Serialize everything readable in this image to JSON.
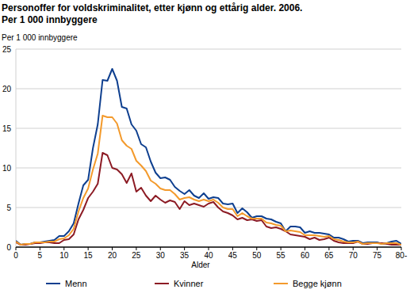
{
  "chart_data": {
    "type": "line",
    "title": "Personoffer for voldskriminalitet, etter kjønn og ettårig alder. 2006.",
    "subtitle": "Per 1 000 innbyggere",
    "y_label": "Per 1 000 innbyggere",
    "x_label": "Alder",
    "categories": [
      "0",
      null,
      null,
      null,
      null,
      "5",
      null,
      null,
      null,
      null,
      "10",
      null,
      null,
      null,
      null,
      "15",
      null,
      null,
      null,
      null,
      "20",
      null,
      null,
      null,
      null,
      "25",
      null,
      null,
      null,
      null,
      "30",
      null,
      null,
      null,
      null,
      "35",
      null,
      null,
      null,
      null,
      "40",
      null,
      null,
      null,
      null,
      "45",
      null,
      null,
      null,
      null,
      "50",
      null,
      null,
      null,
      null,
      "55",
      null,
      null,
      null,
      null,
      "60",
      null,
      null,
      null,
      null,
      "65",
      null,
      null,
      null,
      null,
      "70",
      null,
      null,
      null,
      null,
      "75",
      null,
      null,
      null,
      null,
      "80-"
    ],
    "series": [
      {
        "name": "Menn",
        "color": "#0e3f8f",
        "values": [
          0.8,
          0.3,
          0.4,
          0.4,
          0.6,
          0.6,
          0.7,
          0.8,
          0.9,
          1.4,
          1.4,
          2.0,
          3.0,
          5.5,
          7.8,
          8.5,
          12.5,
          15.5,
          21.1,
          21.0,
          22.5,
          21.0,
          17.7,
          17.5,
          15.5,
          14.7,
          13.0,
          12.6,
          10.8,
          9.4,
          8.7,
          8.8,
          8.5,
          7.6,
          7.1,
          6.7,
          7.2,
          6.5,
          6.2,
          6.8,
          6.1,
          6.3,
          6.2,
          5.5,
          5.4,
          5.5,
          4.3,
          4.9,
          4.4,
          3.7,
          3.9,
          3.9,
          3.6,
          3.5,
          3.2,
          3.0,
          2.0,
          2.6,
          2.6,
          2.5,
          1.8,
          2.0,
          1.8,
          1.8,
          1.7,
          1.6,
          1.2,
          1.2,
          1.0,
          0.7,
          0.8,
          0.8,
          0.5,
          0.6,
          0.6,
          0.6,
          0.4,
          0.5,
          0.7,
          0.8,
          0.4
        ]
      },
      {
        "name": "Kvinner",
        "color": "#8c1b24",
        "values": [
          0.6,
          0.3,
          0.3,
          0.4,
          0.5,
          0.5,
          0.6,
          0.6,
          0.5,
          0.5,
          0.9,
          1.0,
          1.6,
          3.5,
          4.7,
          6.2,
          7.0,
          8.0,
          11.9,
          11.6,
          10.0,
          9.8,
          9.2,
          8.1,
          9.3,
          7.0,
          7.5,
          6.5,
          5.8,
          6.5,
          6.0,
          5.6,
          5.9,
          5.7,
          4.8,
          5.8,
          5.3,
          5.5,
          5.3,
          5.1,
          5.5,
          5.7,
          5.0,
          4.5,
          4.3,
          4.0,
          3.5,
          3.7,
          3.4,
          3.5,
          3.3,
          3.4,
          2.6,
          2.4,
          2.5,
          2.3,
          2.0,
          1.6,
          1.5,
          1.4,
          1.3,
          1.0,
          1.2,
          0.9,
          1.0,
          1.2,
          0.8,
          0.6,
          0.5,
          0.5,
          0.5,
          0.7,
          0.4,
          0.4,
          0.5,
          0.5,
          0.5,
          0.4,
          0.3,
          0.3,
          0.3
        ]
      },
      {
        "name": "Begge kjønn",
        "color": "#f39a2c",
        "values": [
          0.7,
          0.3,
          0.4,
          0.4,
          0.6,
          0.6,
          0.6,
          0.7,
          0.7,
          1.0,
          1.1,
          1.5,
          2.3,
          4.5,
          6.2,
          7.4,
          9.8,
          11.8,
          16.6,
          16.4,
          16.4,
          15.6,
          13.5,
          12.8,
          12.4,
          10.9,
          10.3,
          9.6,
          8.4,
          8.0,
          7.4,
          7.2,
          7.2,
          6.7,
          6.0,
          6.2,
          6.3,
          6.0,
          5.8,
          6.0,
          5.8,
          6.0,
          5.6,
          5.0,
          4.8,
          4.8,
          3.9,
          4.3,
          3.9,
          3.6,
          3.6,
          3.6,
          3.1,
          3.0,
          2.8,
          2.7,
          2.0,
          2.1,
          2.0,
          1.9,
          1.5,
          1.5,
          1.5,
          1.4,
          1.3,
          1.4,
          1.0,
          0.9,
          0.7,
          0.6,
          0.6,
          0.7,
          0.4,
          0.5,
          0.5,
          0.5,
          0.4,
          0.5,
          0.5,
          0.5,
          0.3
        ]
      }
    ],
    "ylim": [
      0,
      25
    ],
    "yticks": [
      0,
      5,
      10,
      15,
      20,
      25
    ],
    "grid": true,
    "legend": "bottom"
  }
}
